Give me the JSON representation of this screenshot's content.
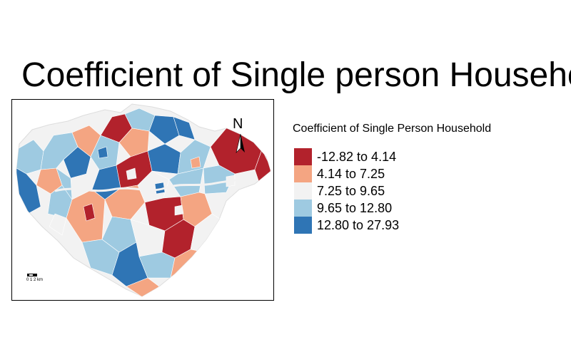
{
  "title": "Coefficient of Single person Household",
  "north_label": "N",
  "scale_bar_label": "0 1 2 km",
  "legend": {
    "title": "Coefficient of Single Person Household",
    "items": [
      {
        "label": "-12.82 to 4.14",
        "color": "#b2222c"
      },
      {
        "label": "4.14 to 7.25",
        "color": "#f4a582"
      },
      {
        "label": "7.25 to 9.65",
        "color": "#f2f2f2"
      },
      {
        "label": "9.65 to 12.80",
        "color": "#9ecae1"
      },
      {
        "label": "12.80 to 27.93",
        "color": "#2f75b5"
      }
    ]
  }
}
